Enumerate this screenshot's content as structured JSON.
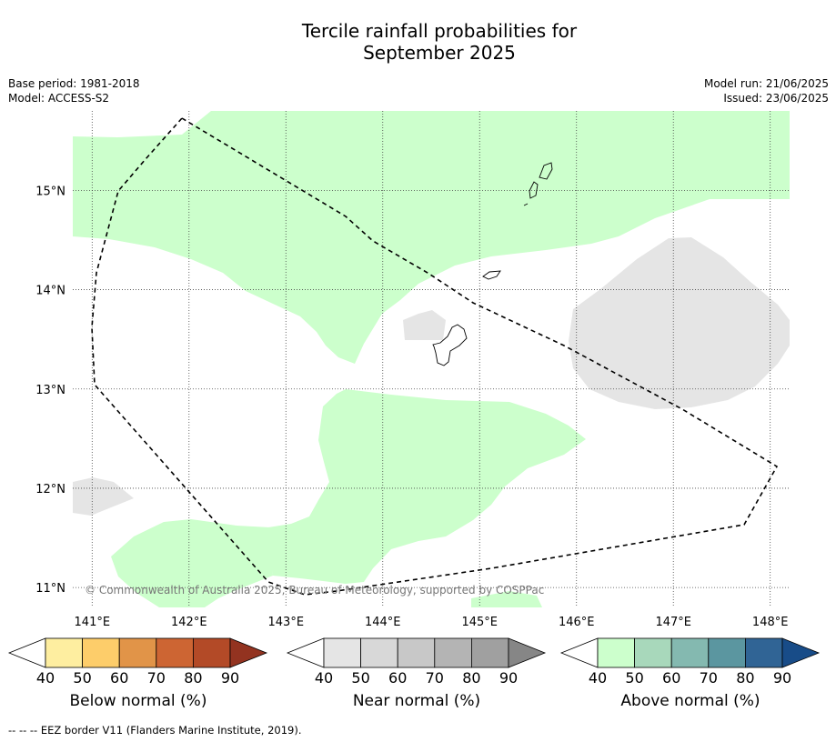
{
  "title_line1": "Tercile rainfall probabilities for",
  "title_line2": "September 2025",
  "base_period": "Base period: 1981-2018",
  "model": "Model: ACCESS-S2",
  "model_run": "Model run: 21/06/2025",
  "issued": "Issued: 23/06/2025",
  "copyright": "© Commonwealth of Australia 2025, Bureau of Meteorology, supported by COSPPac",
  "footer": "--  --  -- EEZ border V11 (Flanders Marine Institute, 2019).",
  "map": {
    "lon_range": [
      140.8,
      148.2
    ],
    "lat_range": [
      10.8,
      15.8
    ],
    "lon_ticks": [
      141,
      142,
      143,
      144,
      145,
      146,
      147,
      148
    ],
    "lat_ticks": [
      11,
      12,
      13,
      14,
      15
    ],
    "lon_labels": [
      "141°E",
      "142°E",
      "143°E",
      "144°E",
      "145°E",
      "146°E",
      "147°E",
      "148°E"
    ],
    "lat_labels": [
      "11°N",
      "12°N",
      "13°N",
      "14°N",
      "15°N"
    ],
    "green_color": "#ccffcc",
    "grey_color": "#e5e5e5"
  },
  "colorbars": [
    {
      "title": "Below normal (%)",
      "ticks": [
        "40",
        "50",
        "60",
        "70",
        "80",
        "90"
      ],
      "colors": [
        "#ffffff",
        "#feeea0",
        "#fdcd6a",
        "#e19448",
        "#cd6533",
        "#b34a27",
        "#933320"
      ]
    },
    {
      "title": "Near normal (%)",
      "ticks": [
        "40",
        "50",
        "60",
        "70",
        "80",
        "90"
      ],
      "colors": [
        "#ffffff",
        "#e5e5e5",
        "#d8d8d8",
        "#c8c8c8",
        "#b4b4b4",
        "#a0a0a0",
        "#868686"
      ]
    },
    {
      "title": "Above normal (%)",
      "ticks": [
        "40",
        "50",
        "60",
        "70",
        "80",
        "90"
      ],
      "colors": [
        "#ffffff",
        "#ccffcc",
        "#a8d8bb",
        "#84b9b0",
        "#5b96a0",
        "#306495",
        "#184c88"
      ]
    }
  ]
}
